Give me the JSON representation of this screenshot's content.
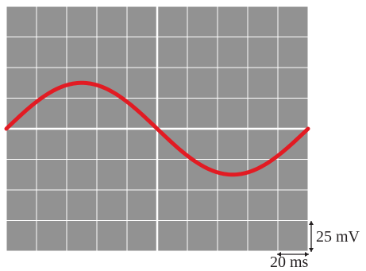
{
  "screen": {
    "background_color": "#929292",
    "grid_color": "#ffffff",
    "trace_color": "#e21b23",
    "divisions_x": 10,
    "divisions_y": 8
  },
  "signal": {
    "waveform": "sine",
    "amplitude_divisions": 1.5,
    "period_divisions": 10,
    "start_phase": "rising-zero-crossing"
  },
  "scale": {
    "volts_per_div_label": "25 mV",
    "time_per_div_label": "20 ms"
  }
}
